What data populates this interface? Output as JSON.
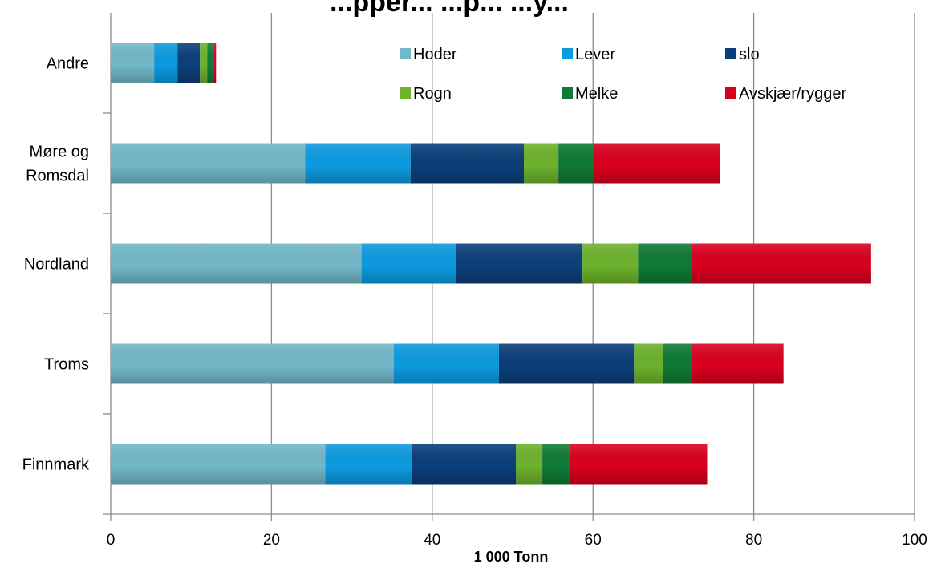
{
  "chart_data": {
    "type": "bar",
    "orientation": "horizontal",
    "stacked": true,
    "title": "...pper... ...p... ...y...",
    "xlabel": "1 000 Tonn",
    "ylabel": "",
    "xlim": [
      0,
      100
    ],
    "xticks": [
      "0",
      "20",
      "40",
      "60",
      "80",
      "100"
    ],
    "grid": "vertical",
    "legend_position": "top-right",
    "categories": [
      "Finnmark",
      "Troms",
      "Nordland",
      "Møre og Romsdal",
      "Andre"
    ],
    "category_lines": {
      "Finnmark": [
        "Finnmark"
      ],
      "Troms": [
        "Troms"
      ],
      "Nordland": [
        "Nordland"
      ],
      "Møre og Romsdal": [
        "Møre og",
        "Romsdal"
      ],
      "Andre": [
        "Andre"
      ]
    },
    "series": [
      {
        "name": "Hoder",
        "color": "#72B8C8",
        "values": [
          26.7,
          35.2,
          31.2,
          24.2,
          5.4
        ]
      },
      {
        "name": "Lever",
        "color": "#0D9BE0",
        "values": [
          10.7,
          13.1,
          11.8,
          13.1,
          2.9
        ]
      },
      {
        "name": "slo",
        "color": "#0B3F7A",
        "values": [
          13.0,
          16.8,
          15.7,
          14.1,
          2.8
        ]
      },
      {
        "name": "Rogn",
        "color": "#6DB22C",
        "values": [
          3.3,
          3.6,
          6.9,
          4.3,
          0.9
        ]
      },
      {
        "name": "Melke",
        "color": "#0F7A35",
        "values": [
          3.3,
          3.6,
          6.7,
          4.3,
          0.8
        ]
      },
      {
        "name": "Avskjær/rygger",
        "color": "#D9001E",
        "values": [
          17.2,
          11.4,
          22.3,
          15.8,
          0.3
        ]
      }
    ]
  }
}
